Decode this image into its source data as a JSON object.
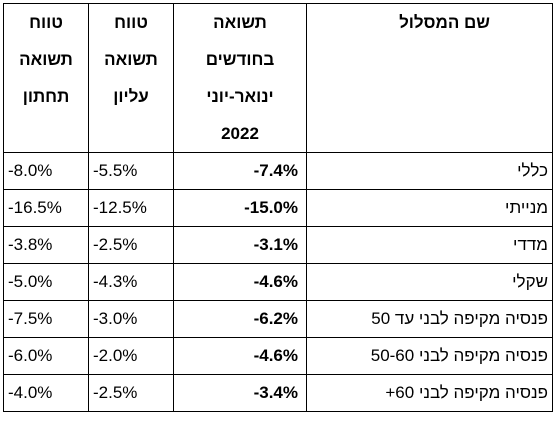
{
  "table": {
    "headers": [
      {
        "lines": [
          "שם המסלול"
        ]
      },
      {
        "lines": [
          "תשואה",
          "בחודשים",
          "ינואר-יוני",
          "2022"
        ]
      },
      {
        "lines": [
          "טווח",
          "תשואה",
          "עליון"
        ]
      },
      {
        "lines": [
          "טווח",
          "תשואה",
          "תחתון"
        ]
      }
    ],
    "rows": [
      {
        "track": "כללי",
        "ytd": "-7.4%",
        "upper": "-5.5%",
        "lower": "-8.0%"
      },
      {
        "track": "מנייתי",
        "ytd": "-15.0%",
        "upper": "-12.5%",
        "lower": "-16.5%"
      },
      {
        "track": "מדדי",
        "ytd": "-3.1%",
        "upper": "-2.5%",
        "lower": "-3.8%"
      },
      {
        "track": "שקלי",
        "ytd": "-4.6%",
        "upper": "-4.3%",
        "lower": "-5.0%"
      },
      {
        "track": "פנסיה מקיפה לבני עד 50",
        "ytd": "-6.2%",
        "upper": "-3.0%",
        "lower": "-7.5%"
      },
      {
        "track": "פנסיה מקיפה לבני 50-60",
        "ytd": "-4.6%",
        "upper": "-2.0%",
        "lower": "-6.0%"
      },
      {
        "track": "פנסיה מקיפה לבני 60+",
        "ytd": "-3.4%",
        "upper": "-2.5%",
        "lower": "-4.0%"
      }
    ]
  }
}
